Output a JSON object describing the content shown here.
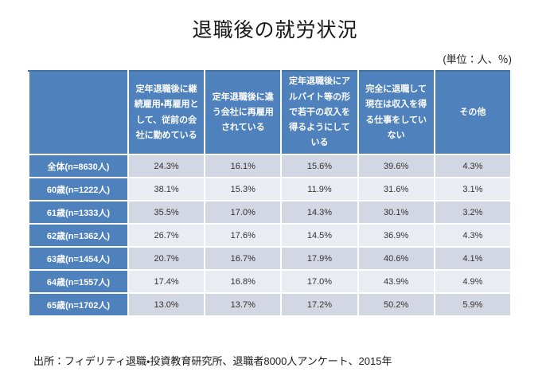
{
  "title": "退職後の就労状況",
  "unit_label": "(単位：人、％)",
  "source": "出所：フィデリティ退職・投資教育研究所、退職者8000人アンケート、2015年",
  "colors": {
    "header_bg": "#4f81bd",
    "header_border_top": "#41719c",
    "band_dark": "#d3d6e3",
    "band_light": "#eaecf3",
    "header_text": "#ffffff",
    "value_text": "#333333",
    "title_text": "#1a1a1a"
  },
  "chart_data": {
    "type": "table",
    "title": "退職後の就労状況",
    "unit": "(単位：人、％)",
    "value_format": "percent_1dp",
    "columns": [
      "定年退職後に継続雇用・再雇用として、従前の会社に勤めている",
      "定年退職後に違う会社に再雇用されている",
      "定年退職後にアルバイト等の形で若干の収入を得るようにしている",
      "完全に退職して現在は収入を得る仕事をしていない",
      "その他"
    ],
    "rows": [
      {
        "label": "全体(n=8630人)",
        "values_pct": [
          24.3,
          16.1,
          15.6,
          39.6,
          4.3
        ]
      },
      {
        "label": "60歳(n=1222人)",
        "values_pct": [
          38.1,
          15.3,
          11.9,
          31.6,
          3.1
        ]
      },
      {
        "label": "61歳(n=1333人)",
        "values_pct": [
          35.5,
          17.0,
          14.3,
          30.1,
          3.2
        ]
      },
      {
        "label": "62歳(n=1362人)",
        "values_pct": [
          26.7,
          17.6,
          14.5,
          36.9,
          4.3
        ]
      },
      {
        "label": "63歳(n=1454人)",
        "values_pct": [
          20.7,
          16.7,
          17.9,
          40.6,
          4.1
        ]
      },
      {
        "label": "64歳(n=1557人)",
        "values_pct": [
          17.4,
          16.8,
          17.0,
          43.9,
          4.9
        ]
      },
      {
        "label": "65歳(n=1702人)",
        "values_pct": [
          13.0,
          13.7,
          17.2,
          50.2,
          5.9
        ]
      }
    ],
    "source": "出所：フィデリティ退職・投資教育研究所、退職者8000人アンケート、2015年"
  }
}
